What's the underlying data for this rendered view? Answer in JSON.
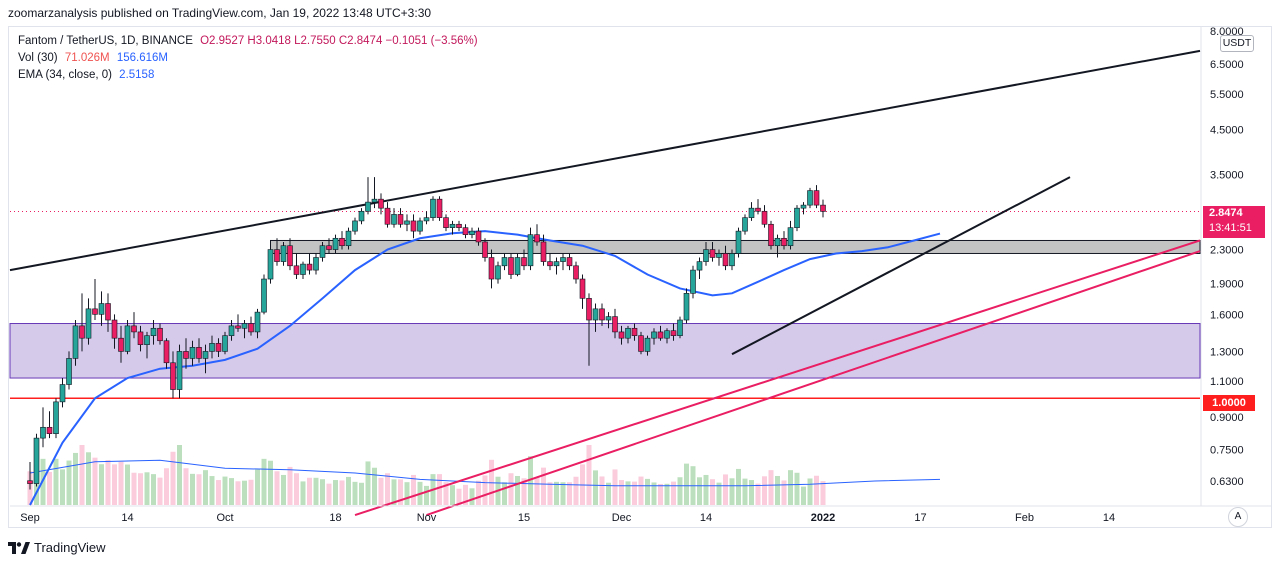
{
  "header": {
    "publish_line": "zoomarzanalysis published on TradingView.com, Jan 19, 2022 13:48 UTC+3:30"
  },
  "legend": {
    "symbol": "Fantom / TetherUS, 1D, BINANCE",
    "ohlc": "O2.9527  H3.0418  L2.7550  C2.8474  −0.1051 (−3.56%)",
    "vol_label": "Vol (30)",
    "vol_value1": "71.026M",
    "vol_value2": "156.616M",
    "ema_label": "EMA (34, close, 0)",
    "ema_value": "2.5158"
  },
  "price_axis": {
    "currency": "USDT",
    "last_price": "2.8474",
    "countdown": "13:41:51",
    "level_one": "1.0000"
  },
  "footer": {
    "brand": "TradingView",
    "auto_label": "A"
  },
  "colors": {
    "up": "#26a69a",
    "down": "#ef5350",
    "candle_up": "#26a69a",
    "candle_down": "#e91e63",
    "ema": "#2962ff",
    "support_line": "#ff1e1e",
    "purple_zone": "#d1c4e9",
    "grey_zone": "#bdbdbd",
    "pink_channel": "#e91e63"
  },
  "chart_data": {
    "type": "candlestick",
    "y_scale": "log",
    "ylim": [
      0.55,
      8.0
    ],
    "y_ticks": [
      "8.0000",
      "6.5000",
      "5.5000",
      "4.5000",
      "3.5000",
      "2.3000",
      "1.9000",
      "1.6000",
      "1.3000",
      "1.1000",
      "0.9000",
      "0.7500",
      "0.6300"
    ],
    "x_ticks": [
      "Sep",
      "14",
      "Oct",
      "18",
      "Nov",
      "15",
      "Dec",
      "14",
      "2022",
      "17",
      "Feb",
      "14"
    ],
    "x_tick_days": [
      0,
      15,
      30,
      47,
      61,
      76,
      91,
      104,
      122,
      137,
      153,
      166
    ],
    "last_day": 140,
    "total_days": 181,
    "candles": [
      [
        0.63,
        0.7,
        0.6,
        0.62
      ],
      [
        0.62,
        0.82,
        0.61,
        0.8
      ],
      [
        0.8,
        0.95,
        0.76,
        0.85
      ],
      [
        0.85,
        0.93,
        0.8,
        0.82
      ],
      [
        0.82,
        1.0,
        0.8,
        0.98
      ],
      [
        0.98,
        1.12,
        0.95,
        1.08
      ],
      [
        1.08,
        1.3,
        1.05,
        1.25
      ],
      [
        1.25,
        1.55,
        1.2,
        1.5
      ],
      [
        1.5,
        1.8,
        1.3,
        1.4
      ],
      [
        1.4,
        1.75,
        1.35,
        1.65
      ],
      [
        1.65,
        1.95,
        1.55,
        1.6
      ],
      [
        1.6,
        1.82,
        1.5,
        1.7
      ],
      [
        1.7,
        1.8,
        1.45,
        1.55
      ],
      [
        1.55,
        1.6,
        1.32,
        1.4
      ],
      [
        1.4,
        1.5,
        1.22,
        1.3
      ],
      [
        1.3,
        1.55,
        1.28,
        1.5
      ],
      [
        1.5,
        1.62,
        1.4,
        1.45
      ],
      [
        1.45,
        1.5,
        1.3,
        1.35
      ],
      [
        1.35,
        1.45,
        1.25,
        1.42
      ],
      [
        1.42,
        1.55,
        1.35,
        1.48
      ],
      [
        1.48,
        1.52,
        1.35,
        1.38
      ],
      [
        1.38,
        1.4,
        1.18,
        1.22
      ],
      [
        1.22,
        1.3,
        1.0,
        1.05
      ],
      [
        1.05,
        1.35,
        1.0,
        1.3
      ],
      [
        1.3,
        1.4,
        1.18,
        1.25
      ],
      [
        1.25,
        1.38,
        1.2,
        1.33
      ],
      [
        1.33,
        1.4,
        1.22,
        1.25
      ],
      [
        1.25,
        1.35,
        1.15,
        1.3
      ],
      [
        1.3,
        1.42,
        1.25,
        1.36
      ],
      [
        1.36,
        1.4,
        1.26,
        1.3
      ],
      [
        1.3,
        1.45,
        1.28,
        1.42
      ],
      [
        1.42,
        1.55,
        1.38,
        1.5
      ],
      [
        1.5,
        1.6,
        1.45,
        1.48
      ],
      [
        1.48,
        1.55,
        1.4,
        1.52
      ],
      [
        1.52,
        1.58,
        1.42,
        1.45
      ],
      [
        1.45,
        1.65,
        1.4,
        1.62
      ],
      [
        1.62,
        2.0,
        1.6,
        1.95
      ],
      [
        1.95,
        2.35,
        1.9,
        2.3
      ],
      [
        2.3,
        2.45,
        2.1,
        2.15
      ],
      [
        2.15,
        2.4,
        2.1,
        2.35
      ],
      [
        2.35,
        2.45,
        2.05,
        2.1
      ],
      [
        2.1,
        2.25,
        1.95,
        2.0
      ],
      [
        2.0,
        2.15,
        1.95,
        2.12
      ],
      [
        2.12,
        2.25,
        2.0,
        2.05
      ],
      [
        2.05,
        2.25,
        2.0,
        2.2
      ],
      [
        2.2,
        2.4,
        2.15,
        2.35
      ],
      [
        2.35,
        2.45,
        2.25,
        2.3
      ],
      [
        2.3,
        2.5,
        2.25,
        2.45
      ],
      [
        2.45,
        2.55,
        2.3,
        2.35
      ],
      [
        2.35,
        2.6,
        2.3,
        2.55
      ],
      [
        2.55,
        2.75,
        2.5,
        2.7
      ],
      [
        2.7,
        2.9,
        2.65,
        2.85
      ],
      [
        2.85,
        3.45,
        2.8,
        3.0
      ],
      [
        3.0,
        3.45,
        2.9,
        3.05
      ],
      [
        3.05,
        3.15,
        2.8,
        2.9
      ],
      [
        2.9,
        3.0,
        2.6,
        2.65
      ],
      [
        2.65,
        2.9,
        2.6,
        2.8
      ],
      [
        2.8,
        2.9,
        2.6,
        2.65
      ],
      [
        2.65,
        2.8,
        2.55,
        2.7
      ],
      [
        2.7,
        2.8,
        2.45,
        2.55
      ],
      [
        2.55,
        2.75,
        2.5,
        2.7
      ],
      [
        2.7,
        2.85,
        2.65,
        2.75
      ],
      [
        2.75,
        3.1,
        2.7,
        3.05
      ],
      [
        3.05,
        3.1,
        2.7,
        2.75
      ],
      [
        2.75,
        2.8,
        2.55,
        2.6
      ],
      [
        2.6,
        2.7,
        2.5,
        2.65
      ],
      [
        2.65,
        2.7,
        2.55,
        2.6
      ],
      [
        2.6,
        2.65,
        2.45,
        2.5
      ],
      [
        2.5,
        2.6,
        2.45,
        2.55
      ],
      [
        2.55,
        2.6,
        2.35,
        2.4
      ],
      [
        2.4,
        2.45,
        2.15,
        2.2
      ],
      [
        2.2,
        2.3,
        1.85,
        1.95
      ],
      [
        1.95,
        2.15,
        1.9,
        2.1
      ],
      [
        2.1,
        2.25,
        2.05,
        2.2
      ],
      [
        2.2,
        2.25,
        1.95,
        2.0
      ],
      [
        2.0,
        2.25,
        1.98,
        2.2
      ],
      [
        2.2,
        2.3,
        2.05,
        2.1
      ],
      [
        2.1,
        2.6,
        2.05,
        2.5
      ],
      [
        2.5,
        2.65,
        2.35,
        2.4
      ],
      [
        2.4,
        2.5,
        2.1,
        2.15
      ],
      [
        2.15,
        2.25,
        2.05,
        2.1
      ],
      [
        2.1,
        2.2,
        2.0,
        2.15
      ],
      [
        2.15,
        2.25,
        2.05,
        2.2
      ],
      [
        2.2,
        2.25,
        2.05,
        2.1
      ],
      [
        2.1,
        2.15,
        1.9,
        1.95
      ],
      [
        1.95,
        2.0,
        1.65,
        1.75
      ],
      [
        1.75,
        1.8,
        1.2,
        1.55
      ],
      [
        1.55,
        1.7,
        1.45,
        1.65
      ],
      [
        1.65,
        1.7,
        1.5,
        1.55
      ],
      [
        1.55,
        1.62,
        1.48,
        1.58
      ],
      [
        1.58,
        1.65,
        1.4,
        1.45
      ],
      [
        1.45,
        1.5,
        1.35,
        1.4
      ],
      [
        1.4,
        1.5,
        1.36,
        1.48
      ],
      [
        1.48,
        1.52,
        1.38,
        1.42
      ],
      [
        1.42,
        1.45,
        1.28,
        1.3
      ],
      [
        1.3,
        1.42,
        1.27,
        1.4
      ],
      [
        1.4,
        1.48,
        1.35,
        1.45
      ],
      [
        1.45,
        1.5,
        1.38,
        1.4
      ],
      [
        1.4,
        1.48,
        1.36,
        1.46
      ],
      [
        1.46,
        1.52,
        1.38,
        1.42
      ],
      [
        1.42,
        1.58,
        1.4,
        1.55
      ],
      [
        1.55,
        1.85,
        1.52,
        1.8
      ],
      [
        1.8,
        2.1,
        1.75,
        2.05
      ],
      [
        2.05,
        2.2,
        1.95,
        2.15
      ],
      [
        2.15,
        2.4,
        2.1,
        2.3
      ],
      [
        2.3,
        2.4,
        2.15,
        2.2
      ],
      [
        2.2,
        2.3,
        2.1,
        2.25
      ],
      [
        2.25,
        2.35,
        2.05,
        2.1
      ],
      [
        2.1,
        2.3,
        2.05,
        2.25
      ],
      [
        2.25,
        2.6,
        2.2,
        2.55
      ],
      [
        2.55,
        2.8,
        2.5,
        2.75
      ],
      [
        2.75,
        3.0,
        2.7,
        2.9
      ],
      [
        2.9,
        3.05,
        2.8,
        2.85
      ],
      [
        2.85,
        2.95,
        2.6,
        2.65
      ],
      [
        2.65,
        2.7,
        2.3,
        2.35
      ],
      [
        2.35,
        2.5,
        2.2,
        2.45
      ],
      [
        2.45,
        2.55,
        2.3,
        2.35
      ],
      [
        2.35,
        2.7,
        2.3,
        2.6
      ],
      [
        2.6,
        2.95,
        2.55,
        2.9
      ],
      [
        2.9,
        3.0,
        2.8,
        2.95
      ],
      [
        2.95,
        3.25,
        2.9,
        3.2
      ],
      [
        3.2,
        3.3,
        2.9,
        2.95
      ],
      [
        2.95,
        3.0418,
        2.755,
        2.8474
      ]
    ],
    "ema34": [
      [
        0,
        0.55
      ],
      [
        5,
        0.78
      ],
      [
        10,
        1.0
      ],
      [
        15,
        1.12
      ],
      [
        20,
        1.18
      ],
      [
        25,
        1.2
      ],
      [
        30,
        1.24
      ],
      [
        35,
        1.32
      ],
      [
        40,
        1.5
      ],
      [
        45,
        1.75
      ],
      [
        50,
        2.05
      ],
      [
        55,
        2.3
      ],
      [
        60,
        2.45
      ],
      [
        65,
        2.52
      ],
      [
        70,
        2.55
      ],
      [
        75,
        2.5
      ],
      [
        80,
        2.42
      ],
      [
        85,
        2.35
      ],
      [
        90,
        2.22
      ],
      [
        95,
        2.0
      ],
      [
        100,
        1.85
      ],
      [
        105,
        1.78
      ],
      [
        108,
        1.8
      ],
      [
        112,
        1.92
      ],
      [
        116,
        2.05
      ],
      [
        120,
        2.18
      ],
      [
        124,
        2.25
      ],
      [
        128,
        2.28
      ],
      [
        132,
        2.33
      ],
      [
        136,
        2.42
      ],
      [
        140,
        2.5158
      ]
    ],
    "vol_ema_points": [
      [
        0,
        0.2
      ],
      [
        10,
        0.27
      ],
      [
        20,
        0.28
      ],
      [
        30,
        0.23
      ],
      [
        40,
        0.22
      ],
      [
        50,
        0.2
      ],
      [
        60,
        0.16
      ],
      [
        70,
        0.14
      ],
      [
        80,
        0.13
      ],
      [
        90,
        0.12
      ],
      [
        100,
        0.12
      ],
      [
        110,
        0.12
      ],
      [
        120,
        0.13
      ],
      [
        130,
        0.15
      ],
      [
        140,
        0.16
      ]
    ],
    "zones": [
      {
        "name": "purple-zone",
        "from": 1.12,
        "to": 1.52
      },
      {
        "name": "grey-zone",
        "from": 2.25,
        "to": 2.42
      }
    ],
    "levels": [
      {
        "name": "support-1",
        "value": 1.0
      }
    ],
    "trendlines": [
      {
        "name": "upper-black",
        "x1": -5,
        "y1": 2.05,
        "x2": 181,
        "y2": 7.0
      },
      {
        "name": "lower-black",
        "x1": 108,
        "y1": 1.28,
        "x2": 160,
        "y2": 3.45
      },
      {
        "name": "pink-upper",
        "x1": 50,
        "y1": 0.52,
        "x2": 181,
        "y2": 2.42
      },
      {
        "name": "pink-lower",
        "x1": 61,
        "y1": 0.52,
        "x2": 181,
        "y2": 2.28
      }
    ]
  }
}
